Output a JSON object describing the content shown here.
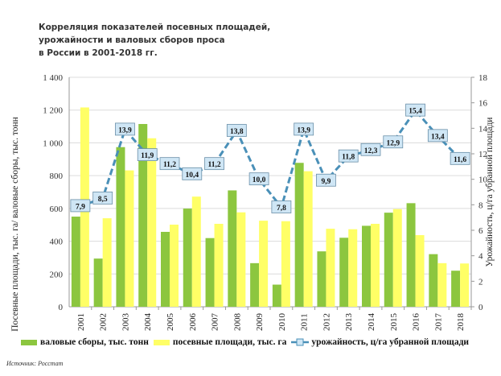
{
  "chart_data": {
    "type": "bar+line",
    "title_lines": [
      "Корреляция показателей посевных площадей,",
      "урожайности и валовых сборов проса",
      "в России в 2001-2018 гг."
    ],
    "categories": [
      "2001",
      "2002",
      "2003",
      "2004",
      "2005",
      "2006",
      "2007",
      "2008",
      "2009",
      "2010",
      "2011",
      "2012",
      "2013",
      "2014",
      "2015",
      "2016",
      "2017",
      "2018"
    ],
    "series": [
      {
        "name": "валовые сборы, тыс. тонн",
        "type": "bar",
        "axis": "left",
        "color": "#8cc63f",
        "values": [
          550,
          294,
          974,
          1115,
          457,
          599,
          419,
          710,
          266,
          135,
          878,
          338,
          421,
          494,
          574,
          632,
          321,
          220
        ]
      },
      {
        "name": "посевные площади, тыс. га",
        "type": "bar",
        "axis": "left",
        "color": "#ffff66",
        "values": [
          1216,
          540,
          832,
          1028,
          501,
          672,
          506,
          576,
          525,
          522,
          827,
          476,
          473,
          506,
          596,
          437,
          266,
          264
        ]
      },
      {
        "name": "урожайность, ц/га убранной площади",
        "type": "line",
        "axis": "right",
        "color": "#4a90b8",
        "values": [
          7.9,
          8.5,
          13.9,
          11.9,
          11.2,
          10.4,
          11.2,
          13.8,
          10.0,
          7.8,
          13.9,
          9.9,
          11.8,
          12.3,
          12.9,
          15.4,
          13.4,
          11.6
        ],
        "labels": [
          "7,9",
          "8,5",
          "13,9",
          "11,9",
          "11,2",
          "10,4",
          "11,2",
          "13,8",
          "10,0",
          "7,8",
          "13,9",
          "9,9",
          "11,8",
          "12,3",
          "12,9",
          "15,4",
          "13,4",
          "11,6"
        ]
      }
    ],
    "ylabel": "Посевные площади, тыс. га/ валовые сборы, тыс. тонн",
    "y2label": "Урожайность, ц/га убранной площади",
    "ylim": [
      0,
      1400
    ],
    "y2lim": [
      0,
      18
    ],
    "yticks": [
      "0",
      "200",
      "400",
      "600",
      "800",
      "1 000",
      "1 200",
      "1 400"
    ],
    "y2ticks": [
      "0",
      "2",
      "4",
      "6",
      "8",
      "10",
      "12",
      "14",
      "16",
      "18"
    ],
    "grid": true,
    "legend": "bottom"
  },
  "source": "Источник: Росстат"
}
